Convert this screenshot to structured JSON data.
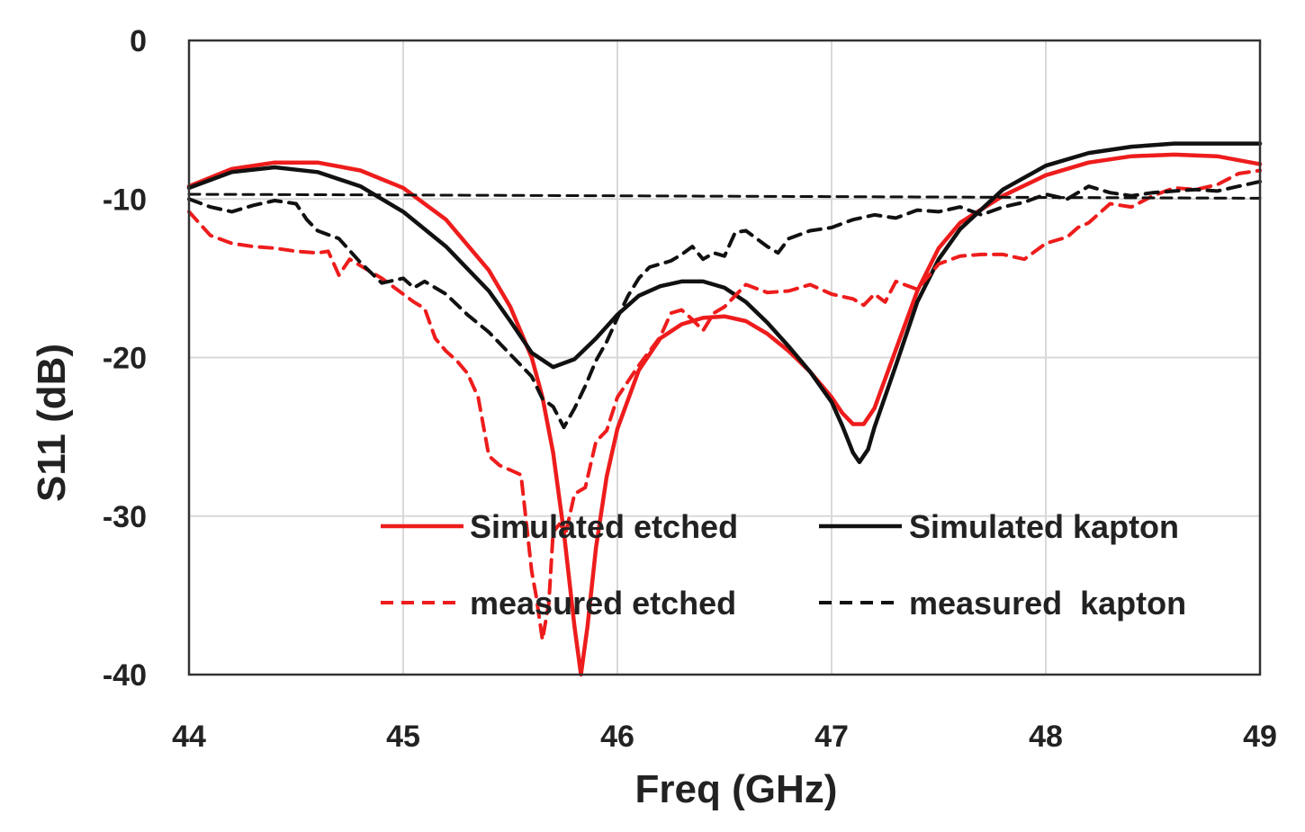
{
  "chart_data": {
    "type": "line",
    "title": "",
    "xlabel": "Freq (GHz)",
    "ylabel": "S11 (dB)",
    "xlim": [
      44,
      49
    ],
    "ylim": [
      -40,
      0
    ],
    "xticks": [
      44,
      45,
      46,
      47,
      48,
      49
    ],
    "yticks": [
      0,
      -10,
      -20,
      -30,
      -40
    ],
    "grid": true,
    "legend_position": "bottom-right",
    "colors": {
      "red": "#ee1c1c",
      "black": "#111111",
      "grid": "#d9d9d9",
      "frame": "#333333"
    },
    "series": [
      {
        "name": "Simulated etched",
        "color": "#ee1c1c",
        "style": "solid",
        "x": [
          44.0,
          44.2,
          44.4,
          44.6,
          44.8,
          45.0,
          45.2,
          45.4,
          45.5,
          45.6,
          45.65,
          45.7,
          45.75,
          45.8,
          45.83,
          45.86,
          45.9,
          45.95,
          46.0,
          46.1,
          46.2,
          46.3,
          46.4,
          46.5,
          46.6,
          46.7,
          46.8,
          46.9,
          47.0,
          47.05,
          47.1,
          47.15,
          47.2,
          47.3,
          47.4,
          47.5,
          47.6,
          47.8,
          48.0,
          48.2,
          48.4,
          48.6,
          48.8,
          49.0
        ],
        "y": [
          -9.2,
          -8.1,
          -7.7,
          -7.7,
          -8.2,
          -9.3,
          -11.3,
          -14.5,
          -16.8,
          -20.0,
          -22.5,
          -26.0,
          -31.0,
          -37.0,
          -40.0,
          -37.0,
          -32.0,
          -27.5,
          -24.5,
          -20.8,
          -18.8,
          -17.9,
          -17.5,
          -17.4,
          -17.7,
          -18.5,
          -19.6,
          -20.9,
          -22.5,
          -23.5,
          -24.2,
          -24.2,
          -23.2,
          -19.5,
          -15.8,
          -13.1,
          -11.5,
          -9.8,
          -8.5,
          -7.7,
          -7.3,
          -7.2,
          -7.3,
          -7.8
        ]
      },
      {
        "name": "Simulated kapton",
        "color": "#111111",
        "style": "solid",
        "x": [
          44.0,
          44.2,
          44.4,
          44.6,
          44.8,
          45.0,
          45.2,
          45.4,
          45.5,
          45.6,
          45.7,
          45.8,
          45.9,
          46.0,
          46.1,
          46.2,
          46.3,
          46.4,
          46.5,
          46.6,
          46.7,
          46.8,
          46.9,
          47.0,
          47.05,
          47.1,
          47.13,
          47.17,
          47.2,
          47.3,
          47.4,
          47.5,
          47.6,
          47.8,
          48.0,
          48.2,
          48.4,
          48.6,
          48.8,
          49.0
        ],
        "y": [
          -9.3,
          -8.3,
          -8.0,
          -8.3,
          -9.2,
          -10.8,
          -13.0,
          -15.8,
          -17.7,
          -19.7,
          -20.6,
          -20.1,
          -18.8,
          -17.3,
          -16.1,
          -15.5,
          -15.2,
          -15.2,
          -15.6,
          -16.5,
          -17.8,
          -19.3,
          -20.9,
          -22.8,
          -24.3,
          -26.0,
          -26.6,
          -25.8,
          -24.4,
          -20.5,
          -16.5,
          -13.8,
          -11.9,
          -9.4,
          -7.9,
          -7.1,
          -6.7,
          -6.5,
          -6.5,
          -6.5
        ]
      },
      {
        "name": "measured etched",
        "color": "#ee1c1c",
        "style": "dashed",
        "x": [
          44.0,
          44.1,
          44.2,
          44.3,
          44.4,
          44.5,
          44.6,
          44.65,
          44.7,
          44.75,
          44.8,
          44.9,
          45.0,
          45.05,
          45.1,
          45.15,
          45.2,
          45.25,
          45.3,
          45.35,
          45.4,
          45.45,
          45.5,
          45.55,
          45.6,
          45.62,
          45.65,
          45.68,
          45.7,
          45.73,
          45.76,
          45.8,
          45.85,
          45.9,
          45.95,
          46.0,
          46.05,
          46.1,
          46.15,
          46.2,
          46.25,
          46.3,
          46.35,
          46.4,
          46.45,
          46.5,
          46.55,
          46.6,
          46.7,
          46.8,
          46.9,
          47.0,
          47.1,
          47.15,
          47.2,
          47.25,
          47.3,
          47.4,
          47.5,
          47.6,
          47.7,
          47.8,
          47.9,
          48.0,
          48.1,
          48.15,
          48.2,
          48.3,
          48.4,
          48.5,
          48.6,
          48.7,
          48.8,
          48.9,
          49.0
        ],
        "y": [
          -10.8,
          -12.3,
          -12.8,
          -13.0,
          -13.1,
          -13.3,
          -13.4,
          -13.3,
          -14.8,
          -13.8,
          -14.2,
          -15.0,
          -16.0,
          -16.5,
          -16.9,
          -18.8,
          -19.6,
          -20.2,
          -21.0,
          -22.5,
          -26.2,
          -26.8,
          -27.1,
          -27.4,
          -33.5,
          -35.0,
          -37.8,
          -35.5,
          -31.0,
          -30.5,
          -31.0,
          -28.6,
          -28.2,
          -25.3,
          -24.6,
          -22.5,
          -21.5,
          -20.5,
          -19.6,
          -18.7,
          -17.2,
          -17.0,
          -17.6,
          -18.3,
          -17.2,
          -16.8,
          -16.1,
          -15.4,
          -15.9,
          -15.8,
          -15.4,
          -16.0,
          -16.3,
          -16.7,
          -16.0,
          -16.5,
          -15.2,
          -15.7,
          -14.1,
          -13.6,
          -13.5,
          -13.5,
          -13.8,
          -12.8,
          -12.4,
          -11.8,
          -11.5,
          -10.3,
          -10.5,
          -9.8,
          -9.3,
          -9.4,
          -9.1,
          -8.4,
          -8.2
        ]
      },
      {
        "name": "measured  kapton",
        "color": "#111111",
        "style": "dashed",
        "x": [
          44.0,
          44.1,
          44.2,
          44.3,
          44.4,
          44.5,
          44.55,
          44.6,
          44.7,
          44.8,
          44.9,
          45.0,
          45.05,
          45.1,
          45.2,
          45.3,
          45.4,
          45.5,
          45.6,
          45.65,
          45.7,
          45.75,
          45.8,
          45.85,
          45.9,
          45.95,
          46.0,
          46.05,
          46.1,
          46.15,
          46.2,
          46.25,
          46.3,
          46.35,
          46.4,
          46.45,
          46.5,
          46.55,
          46.6,
          46.65,
          46.7,
          46.75,
          46.8,
          46.9,
          47.0,
          47.1,
          47.2,
          47.3,
          47.4,
          47.5,
          47.6,
          47.7,
          47.8,
          47.9,
          48.0,
          48.1,
          48.2,
          48.3,
          48.4,
          48.5,
          48.6,
          48.7,
          48.8,
          48.9,
          49.0
        ],
        "y": [
          -10.0,
          -10.5,
          -10.8,
          -10.4,
          -10.1,
          -10.3,
          -11.3,
          -12.0,
          -12.5,
          -14.0,
          -15.3,
          -15.0,
          -15.6,
          -15.2,
          -16.0,
          -17.3,
          -18.4,
          -19.8,
          -21.2,
          -22.6,
          -23.1,
          -24.4,
          -23.2,
          -21.8,
          -20.2,
          -19.0,
          -17.5,
          -16.1,
          -15.0,
          -14.3,
          -14.1,
          -13.9,
          -13.5,
          -13.0,
          -13.8,
          -13.4,
          -13.6,
          -12.1,
          -12.0,
          -12.5,
          -13.0,
          -13.4,
          -12.5,
          -12.0,
          -11.8,
          -11.3,
          -11.0,
          -11.2,
          -10.7,
          -10.8,
          -10.5,
          -11.0,
          -10.5,
          -10.2,
          -9.7,
          -10.0,
          -9.2,
          -9.6,
          -9.8,
          -9.6,
          -9.5,
          -9.4,
          -9.5,
          -9.2,
          -8.9
        ]
      },
      {
        "name": "-10 dB reference",
        "color": "#111111",
        "style": "dashed-thin",
        "x": [
          44.0,
          45.0,
          46.0,
          47.0,
          48.0,
          49.0
        ],
        "y": [
          -9.7,
          -9.75,
          -9.8,
          -9.85,
          -9.9,
          -9.95
        ]
      }
    ],
    "legend": [
      {
        "label": "Simulated etched",
        "color": "#ee1c1c",
        "style": "solid"
      },
      {
        "label": "Simulated kapton",
        "color": "#111111",
        "style": "solid"
      },
      {
        "label": "measured etched",
        "color": "#ee1c1c",
        "style": "dashed"
      },
      {
        "label": "measured  kapton",
        "color": "#111111",
        "style": "dashed"
      }
    ]
  }
}
